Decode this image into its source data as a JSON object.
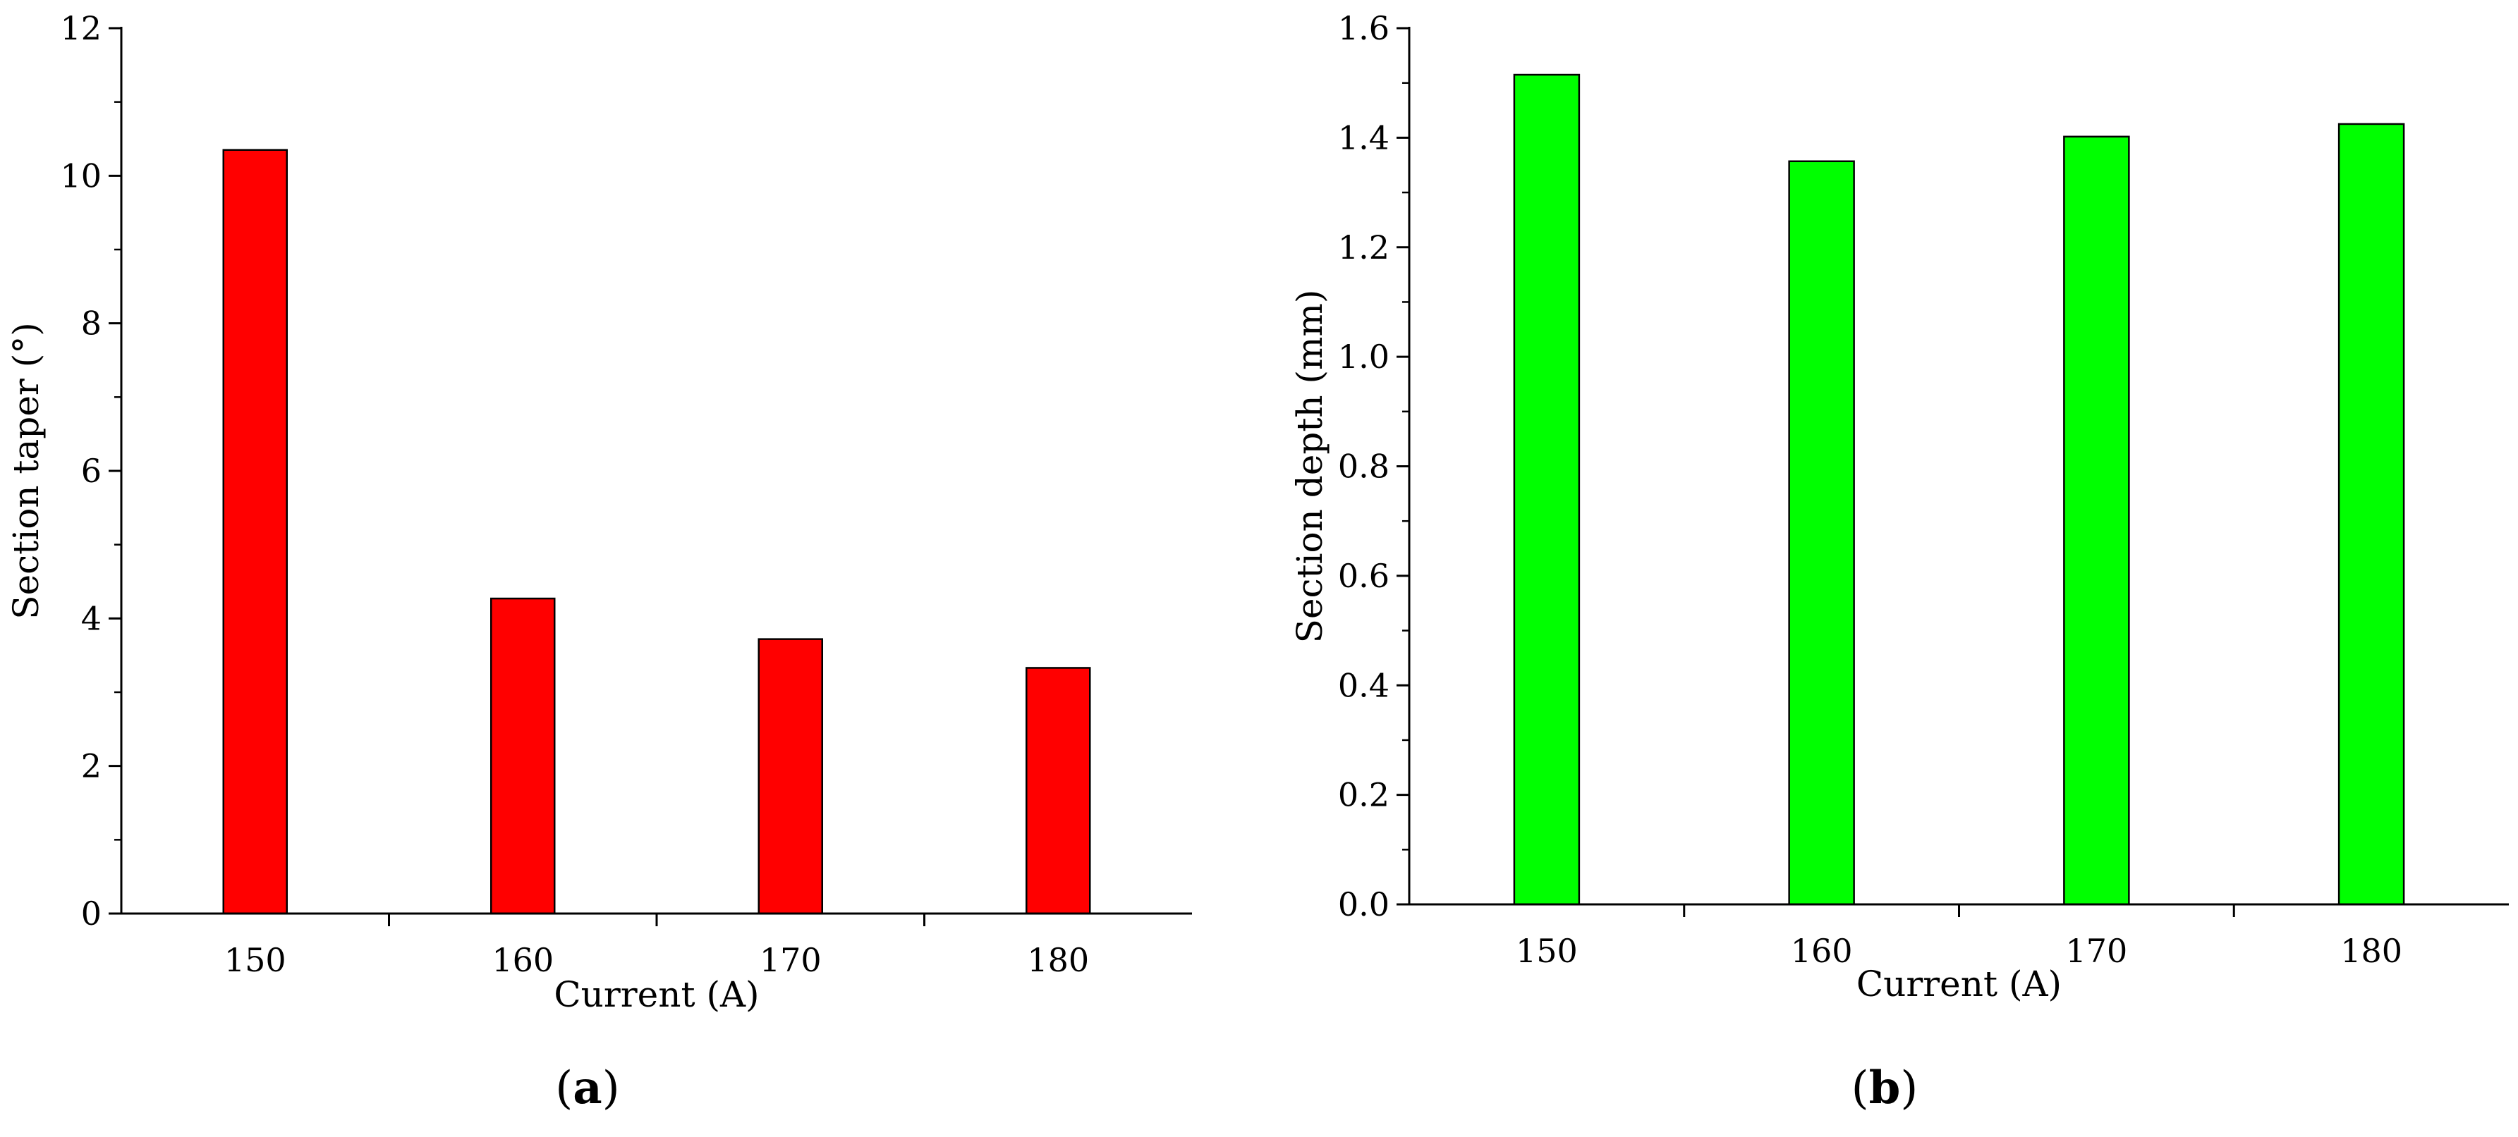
{
  "chart_data": [
    {
      "type": "bar",
      "panel_label": "a",
      "categories": [
        "150",
        "160",
        "170",
        "180"
      ],
      "values": [
        10.35,
        4.27,
        3.72,
        3.33
      ],
      "xlabel": "Current (A)",
      "ylabel": "Section taper (°)",
      "ylim": [
        0,
        12
      ],
      "yticks": [
        "0",
        "2",
        "4",
        "6",
        "8",
        "10",
        "12"
      ],
      "grid": false,
      "bar_color": "#ff0000"
    },
    {
      "type": "bar",
      "panel_label": "b",
      "categories": [
        "150",
        "160",
        "170",
        "180"
      ],
      "values": [
        1.515,
        1.357,
        1.402,
        1.425
      ],
      "xlabel": "Current (A)",
      "ylabel": "Section depth (mm)",
      "ylim": [
        0,
        1.6
      ],
      "yticks": [
        "0.0",
        "0.2",
        "0.4",
        "0.6",
        "0.8",
        "1.0",
        "1.2",
        "1.4",
        "1.6"
      ],
      "grid": false,
      "bar_color": "#00ff00"
    }
  ]
}
